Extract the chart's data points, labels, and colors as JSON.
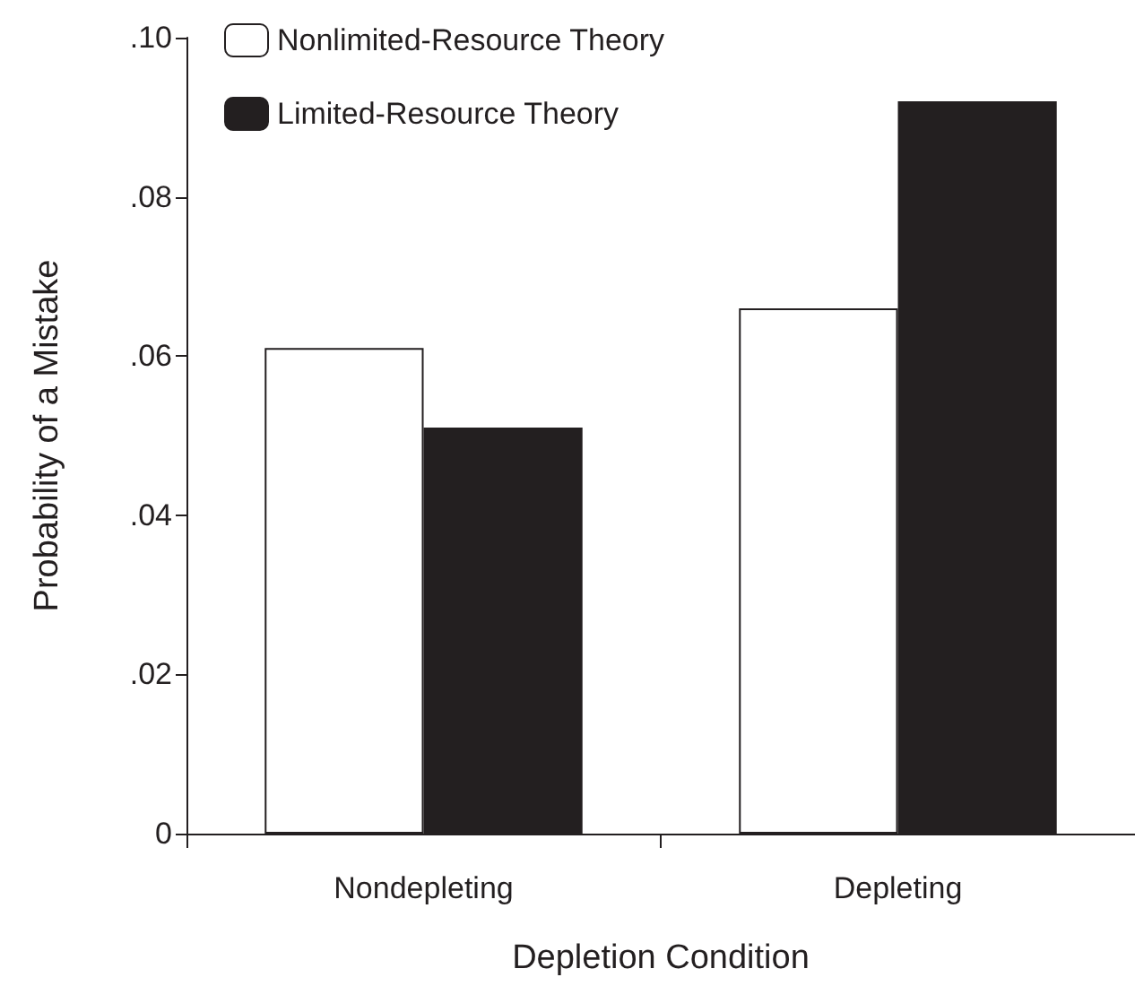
{
  "chart_data": {
    "type": "bar",
    "xlabel": "Depletion Condition",
    "ylabel": "Probability of a Mistake",
    "categories": [
      "Nondepleting",
      "Depleting"
    ],
    "series": [
      {
        "name": "Nonlimited-Resource Theory",
        "color": "#ffffff",
        "values": [
          0.061,
          0.066
        ]
      },
      {
        "name": "Limited-Resource Theory",
        "color": "#231f20",
        "values": [
          0.051,
          0.092
        ]
      }
    ],
    "ylim": [
      0,
      0.1
    ],
    "yticks": [
      0,
      {
        "value": 0.02,
        "label": ".02"
      },
      {
        "value": 0.04,
        "label": ".04"
      },
      {
        "value": 0.06,
        "label": ".06"
      },
      {
        "value": 0.08,
        "label": ".08"
      },
      {
        "value": 0.1,
        "label": ".10"
      }
    ],
    "grid": false,
    "legend": "top left"
  }
}
